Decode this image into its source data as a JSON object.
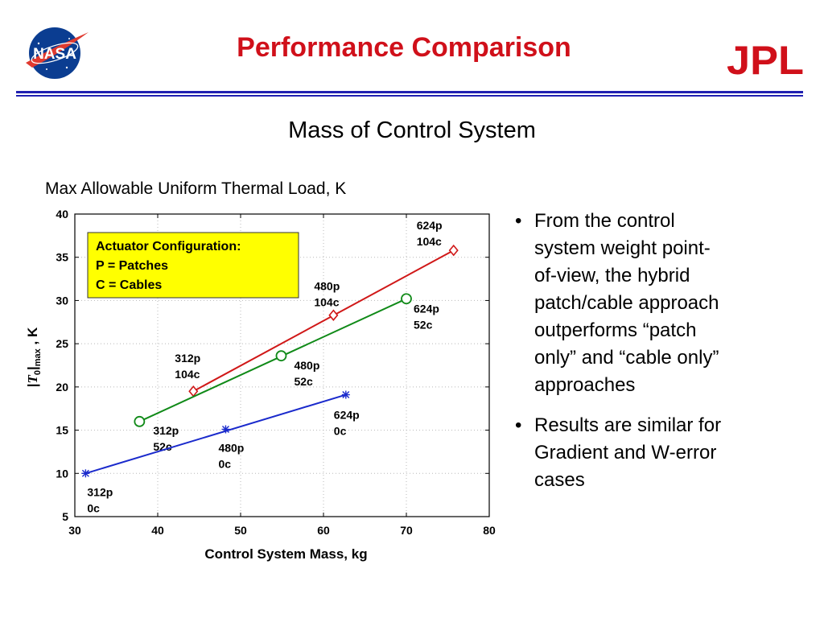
{
  "header": {
    "title": "Performance Comparison",
    "nasa_logo_text": "NASA",
    "jpl_logo_text": "JPL",
    "rule_color": "#2020b0",
    "title_color": "#d0101a"
  },
  "subtitle": "Mass of Control System",
  "chart_heading": "Max Allowable Uniform Thermal Load, K",
  "chart_data": {
    "type": "line",
    "title": "",
    "xlabel": "Control System Mass, kg",
    "ylabel_parts": {
      "pre": "|",
      "var": "T",
      "sub0": "0",
      "mid": "|",
      "submax": "max",
      "post": " , K"
    },
    "xlim": [
      30,
      80
    ],
    "ylim": [
      5,
      40
    ],
    "xticks": [
      30,
      40,
      50,
      60,
      70,
      80
    ],
    "yticks": [
      5,
      10,
      15,
      20,
      25,
      30,
      35,
      40
    ],
    "grid": true,
    "legend_box": {
      "lines": [
        "Actuator Configuration:",
        "P = Patches",
        "C = Cables"
      ],
      "placement": "top-left",
      "fill": "#ffff00"
    },
    "series": [
      {
        "color": "#d01818",
        "marker": "diamond",
        "points": [
          {
            "x": 44.3,
            "y": 19.5,
            "label": [
              "312p",
              "104c"
            ]
          },
          {
            "x": 61.2,
            "y": 28.3,
            "label": [
              "480p",
              "104c"
            ]
          },
          {
            "x": 75.7,
            "y": 35.8,
            "label": [
              "624p",
              "104c"
            ]
          }
        ]
      },
      {
        "color": "#108a18",
        "marker": "circle",
        "points": [
          {
            "x": 37.8,
            "y": 16.0,
            "label": [
              "312p",
              "52c"
            ]
          },
          {
            "x": 54.9,
            "y": 23.6,
            "label": [
              "480p",
              "52c"
            ]
          },
          {
            "x": 70.0,
            "y": 30.2,
            "label": [
              "624p",
              "52c"
            ]
          }
        ]
      },
      {
        "color": "#1a2acc",
        "marker": "star",
        "points": [
          {
            "x": 31.3,
            "y": 10.0,
            "label": [
              "312p",
              "0c"
            ]
          },
          {
            "x": 48.2,
            "y": 15.1,
            "label": [
              "480p",
              "0c"
            ]
          },
          {
            "x": 62.7,
            "y": 19.1,
            "label": [
              "624p",
              "0c"
            ]
          }
        ]
      }
    ]
  },
  "bullets": [
    {
      "symbol": "•",
      "text": "From the control\nsystem weight point-\nof-view, the hybrid\npatch/cable approach\noutperforms “patch\nonly” and “cable only”\napproaches"
    },
    {
      "symbol": "•",
      "text": "Results are similar for\nGradient and W-error\ncases"
    }
  ]
}
